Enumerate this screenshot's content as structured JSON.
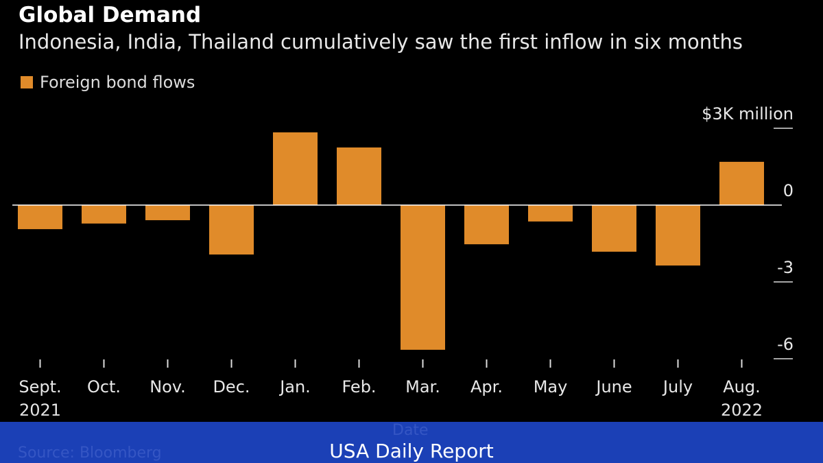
{
  "chart_data": {
    "type": "bar",
    "title": "Global Demand",
    "subtitle": "Indonesia, India, Thailand cumulatively saw the first inflow in six months",
    "categories": [
      "Sept.",
      "Oct.",
      "Nov.",
      "Dec.",
      "Jan.",
      "Feb.",
      "Mar.",
      "Apr.",
      "May",
      "June",
      "July",
      "Aug."
    ],
    "year_labels": {
      "0": "2021",
      "11": "2022"
    },
    "series": [
      {
        "name": "Foreign bond flows",
        "values": [
          -0.94,
          -0.72,
          -0.59,
          -1.93,
          2.84,
          2.25,
          -5.65,
          -1.53,
          -0.64,
          -1.82,
          -2.36,
          1.69
        ],
        "color": "#e08b2a"
      }
    ],
    "yticks": [
      {
        "value": 3,
        "label": "$3K million"
      },
      {
        "value": 0,
        "label": "0"
      },
      {
        "value": -3,
        "label": "-3"
      },
      {
        "value": -6,
        "label": "-6"
      }
    ],
    "ylim": [
      -6,
      3
    ],
    "xlabel": "Date",
    "ylabel": "",
    "legend": "top-left",
    "grid": false,
    "source": "Source: Bloomberg"
  },
  "banner": {
    "text": "USA Daily Report",
    "color": "#1b40b6"
  }
}
